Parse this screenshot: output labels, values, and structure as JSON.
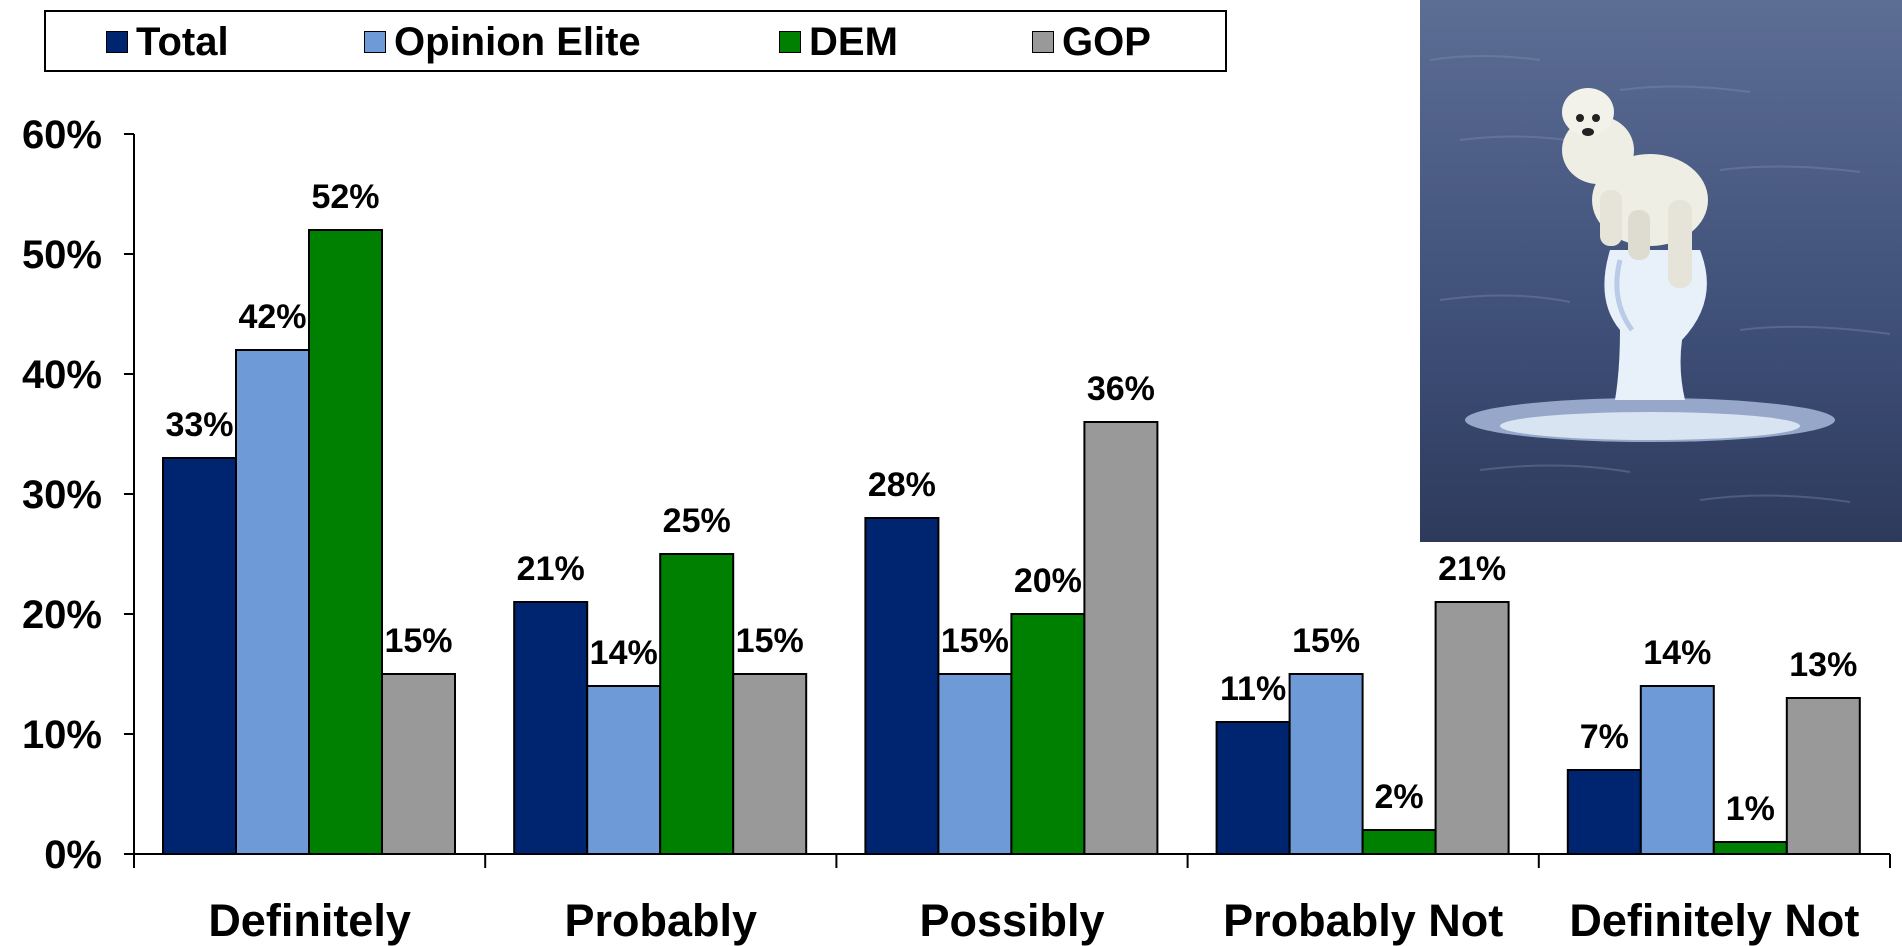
{
  "chart_data": {
    "type": "bar",
    "categories": [
      "Definitely",
      "Probably",
      "Possibly",
      "Probably Not",
      "Definitely Not"
    ],
    "series": [
      {
        "name": "Total",
        "color": "#002570",
        "values": [
          33,
          21,
          28,
          11,
          7
        ]
      },
      {
        "name": "Opinion Elite",
        "color": "#6F9AD8",
        "values": [
          42,
          14,
          15,
          15,
          14
        ]
      },
      {
        "name": "DEM",
        "color": "#008000",
        "values": [
          52,
          25,
          20,
          2,
          1
        ]
      },
      {
        "name": "GOP",
        "color": "#999999",
        "values": [
          15,
          15,
          36,
          21,
          13
        ]
      }
    ],
    "yticks": [
      "0%",
      "10%",
      "20%",
      "30%",
      "40%",
      "50%",
      "60%"
    ],
    "ylim": [
      0,
      60
    ],
    "value_suffix": "%",
    "grid": false,
    "legend_position": "top"
  },
  "image": {
    "subject": "polar-bear-on-melting-ice-icon"
  }
}
